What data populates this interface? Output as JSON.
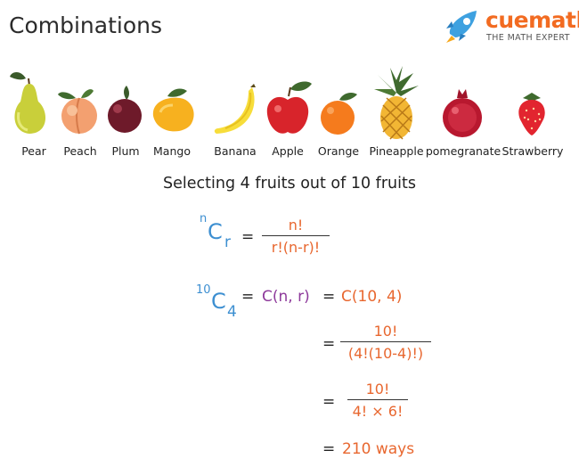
{
  "title": "Combinations",
  "brand": {
    "name": "cuemath",
    "tagline": "THE MATH EXPERT"
  },
  "fruits": [
    {
      "label": "Pear"
    },
    {
      "label": "Peach"
    },
    {
      "label": "Plum"
    },
    {
      "label": "Mango"
    },
    {
      "label": "Banana"
    },
    {
      "label": "Apple"
    },
    {
      "label": "Orange"
    },
    {
      "label": "Pineapple"
    },
    {
      "label": "pomegranate"
    },
    {
      "label": "Strawberry"
    }
  ],
  "subtitle": "Selecting 4 fruits out of 10 fruits",
  "formula": {
    "n": "n",
    "C": "C",
    "r": "r",
    "eq": "=",
    "num": "n!",
    "den": "r!(n-r)!"
  },
  "calc": {
    "n": "10",
    "C": "C",
    "r": "4",
    "eq1": "=",
    "general": "C(n, r)",
    "eq2": "=",
    "specific": "C(10, 4)",
    "eq3": "=",
    "step1_num": "10!",
    "step1_den": "(4!(10-4)!)",
    "eq4": "=",
    "step2_num": "10!",
    "step2_den": "4! × 6!",
    "eq5": "=",
    "result": "210 ways"
  },
  "colors": {
    "blue": "#3d8fd1",
    "orange": "#e8672f",
    "purple": "#8e3a9b",
    "brand": "#f26b21"
  }
}
